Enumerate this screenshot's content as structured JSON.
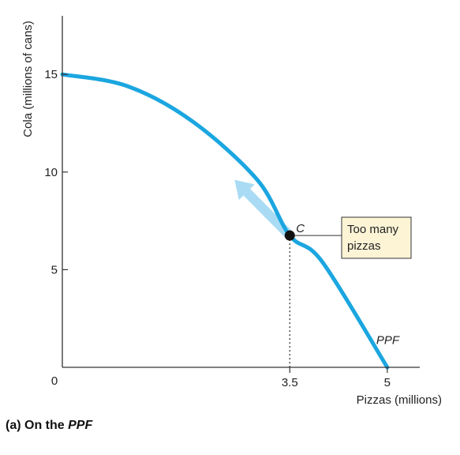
{
  "chart_data": {
    "type": "line",
    "xlabel": "Pizzas (millions)",
    "ylabel": "Cola (millions of cans)",
    "xlim": [
      0,
      5.5
    ],
    "ylim": [
      0,
      18
    ],
    "origin_label": "0",
    "x_tick_values": [
      3.5,
      5
    ],
    "x_tick_labels": [
      "3.5",
      "5"
    ],
    "y_tick_values": [
      5,
      10,
      15
    ],
    "y_tick_labels": [
      "5",
      "10",
      "15"
    ],
    "grid": false,
    "series": [
      {
        "name": "PPF",
        "color": "#1ba6e0",
        "x": [
          0,
          1,
          2,
          3,
          3.5,
          4,
          5
        ],
        "y": [
          15,
          14.4,
          12.6,
          9.6,
          6.75,
          5.4,
          0
        ]
      }
    ],
    "point": {
      "label": "C",
      "x": 3.5,
      "y": 6.75
    },
    "arrow": {
      "color": "#a9dcf4",
      "from": [
        3.5,
        6.75
      ],
      "to": [
        2.65,
        9.6
      ]
    },
    "callout": {
      "lines": [
        "Too many",
        "pizzas"
      ],
      "fill": "#fdf4d6"
    },
    "caption": "(a) On the PPF"
  }
}
